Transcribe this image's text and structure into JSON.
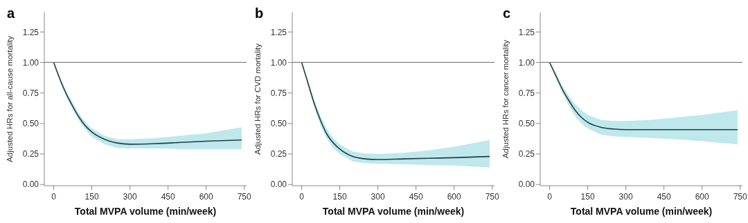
{
  "chart_data": [
    {
      "type": "line",
      "title": "a",
      "xlabel": "Total MVPA volume (min/week)",
      "ylabel": "Adjusted HRs for all-cause mortality",
      "xlim": [
        -37,
        759
      ],
      "xticks": [
        0,
        150,
        300,
        450,
        600,
        750
      ],
      "ylim": [
        -0.01,
        1.41
      ],
      "yticks": [
        {
          "value": 0,
          "label": "0.00"
        },
        {
          "value": 0.25,
          "label": "0.25"
        },
        {
          "value": 0.5,
          "label": "0.50"
        },
        {
          "value": 0.75,
          "label": "0.75"
        },
        {
          "value": 1,
          "label": "1.00"
        },
        {
          "value": 1.25,
          "label": "1.25"
        }
      ],
      "grid": false,
      "legend": false,
      "ref_lines": [
        {
          "axis": "y",
          "value": 1,
          "color": "#808080"
        }
      ],
      "series": [
        {
          "color": "#1f3d44",
          "x": [
            0,
            25,
            50,
            75,
            100,
            125,
            150,
            200,
            250,
            300,
            400,
            500,
            600,
            740
          ],
          "values": [
            1.0,
            0.86,
            0.74,
            0.64,
            0.55,
            0.48,
            0.43,
            0.37,
            0.34,
            0.33,
            0.335,
            0.345,
            0.355,
            0.365
          ],
          "lower": [
            1.0,
            0.84,
            0.72,
            0.61,
            0.52,
            0.45,
            0.39,
            0.33,
            0.3,
            0.295,
            0.295,
            0.29,
            0.29,
            0.29
          ],
          "upper": [
            1.0,
            0.88,
            0.76,
            0.67,
            0.58,
            0.51,
            0.46,
            0.4,
            0.37,
            0.37,
            0.38,
            0.4,
            0.42,
            0.47
          ]
        }
      ]
    },
    {
      "type": "line",
      "title": "b",
      "xlabel": "Total MVPA volume (min/week)",
      "ylabel": "Adjusted HRs for CVD mortality",
      "xlim": [
        -37,
        759
      ],
      "xticks": [
        0,
        150,
        300,
        450,
        600,
        750
      ],
      "ylim": [
        -0.01,
        1.41
      ],
      "yticks": [
        {
          "value": 0,
          "label": "0.00"
        },
        {
          "value": 0.25,
          "label": "0.25"
        },
        {
          "value": 0.5,
          "label": "0.50"
        },
        {
          "value": 0.75,
          "label": "0.75"
        },
        {
          "value": 1,
          "label": "1.00"
        },
        {
          "value": 1.25,
          "label": "1.25"
        }
      ],
      "grid": false,
      "legend": false,
      "ref_lines": [
        {
          "axis": "y",
          "value": 1,
          "color": "#808080"
        }
      ],
      "series": [
        {
          "color": "#1f3d44",
          "x": [
            0,
            25,
            50,
            75,
            100,
            125,
            150,
            200,
            250,
            300,
            400,
            500,
            600,
            740
          ],
          "values": [
            1.0,
            0.83,
            0.66,
            0.52,
            0.41,
            0.34,
            0.29,
            0.23,
            0.21,
            0.205,
            0.21,
            0.215,
            0.22,
            0.23
          ],
          "lower": [
            1.0,
            0.81,
            0.63,
            0.48,
            0.37,
            0.3,
            0.25,
            0.19,
            0.175,
            0.17,
            0.165,
            0.16,
            0.155,
            0.14
          ],
          "upper": [
            1.0,
            0.85,
            0.69,
            0.56,
            0.45,
            0.38,
            0.33,
            0.27,
            0.255,
            0.25,
            0.26,
            0.28,
            0.31,
            0.365
          ]
        }
      ]
    },
    {
      "type": "line",
      "title": "c",
      "xlabel": "Total MVPA volume (min/week)",
      "ylabel": "Adjusted HRs for cancer mortality",
      "xlim": [
        -37,
        759
      ],
      "xticks": [
        0,
        150,
        300,
        450,
        600,
        750
      ],
      "ylim": [
        -0.01,
        1.41
      ],
      "yticks": [
        {
          "value": 0,
          "label": "0.00"
        },
        {
          "value": 0.25,
          "label": "0.25"
        },
        {
          "value": 0.5,
          "label": "0.50"
        },
        {
          "value": 0.75,
          "label": "0.75"
        },
        {
          "value": 1,
          "label": "1.00"
        },
        {
          "value": 1.25,
          "label": "1.25"
        }
      ],
      "grid": false,
      "legend": false,
      "ref_lines": [
        {
          "axis": "y",
          "value": 1,
          "color": "#808080"
        }
      ],
      "series": [
        {
          "color": "#1f3d44",
          "x": [
            0,
            25,
            50,
            75,
            100,
            125,
            150,
            200,
            250,
            300,
            400,
            500,
            600,
            740
          ],
          "values": [
            1.0,
            0.89,
            0.78,
            0.69,
            0.61,
            0.55,
            0.51,
            0.47,
            0.455,
            0.45,
            0.45,
            0.45,
            0.45,
            0.45
          ],
          "lower": [
            1.0,
            0.87,
            0.75,
            0.65,
            0.56,
            0.5,
            0.46,
            0.41,
            0.395,
            0.39,
            0.38,
            0.37,
            0.355,
            0.33
          ],
          "upper": [
            1.0,
            0.91,
            0.81,
            0.73,
            0.66,
            0.61,
            0.57,
            0.53,
            0.52,
            0.52,
            0.53,
            0.55,
            0.57,
            0.61
          ]
        }
      ]
    }
  ]
}
